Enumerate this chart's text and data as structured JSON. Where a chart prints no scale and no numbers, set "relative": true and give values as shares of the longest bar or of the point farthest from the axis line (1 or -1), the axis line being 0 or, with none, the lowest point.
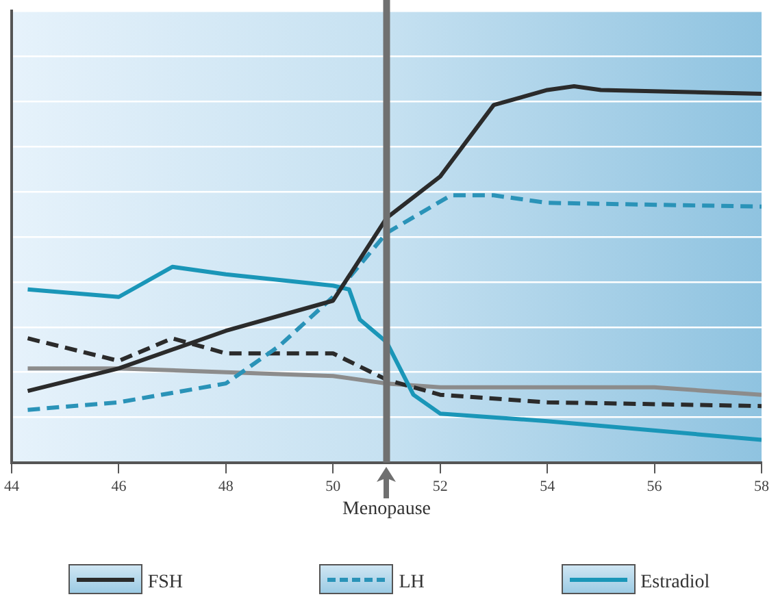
{
  "chart_data": {
    "type": "line",
    "relative": true,
    "grid": "y",
    "legend": "bottom",
    "tick_labels": "x",
    "xlim": [
      44,
      58
    ],
    "xticks": [
      44,
      46,
      48,
      50,
      52,
      54,
      56,
      58
    ],
    "ref_lines": [
      {
        "axis": "x",
        "value": 51,
        "label": "Menopause",
        "color": "#707070"
      }
    ],
    "series": [
      {
        "name": "FSH",
        "color": "#2b2b2b",
        "line_style": "solid",
        "x": [
          44.3,
          46,
          48,
          50,
          51,
          52,
          53,
          54,
          54.5,
          55,
          58
        ],
        "values": [
          0.19,
          0.25,
          0.35,
          0.43,
          0.65,
          0.76,
          0.95,
          0.99,
          1,
          0.99,
          0.98
        ]
      },
      {
        "name": "LH",
        "color": "#2a93b8",
        "line_style": "dashed",
        "x": [
          44.3,
          46,
          48,
          49,
          50,
          51,
          52.2,
          53,
          54,
          58
        ],
        "values": [
          0.14,
          0.16,
          0.21,
          0.31,
          0.44,
          0.61,
          0.71,
          0.71,
          0.69,
          0.68
        ]
      },
      {
        "name": "Estradiol",
        "color": "#1a96b8",
        "line_style": "solid",
        "x": [
          44.3,
          46,
          47,
          48,
          50,
          50.3,
          50.5,
          51,
          51.5,
          52,
          54,
          58
        ],
        "values": [
          0.46,
          0.44,
          0.52,
          0.5,
          0.47,
          0.46,
          0.38,
          0.32,
          0.18,
          0.13,
          0.11,
          0.06
        ]
      },
      {
        "color": "#2b2b2b",
        "line_style": "dashed",
        "x": [
          44.3,
          46,
          47,
          48,
          50,
          51,
          52,
          54,
          58
        ],
        "values": [
          0.33,
          0.27,
          0.33,
          0.29,
          0.29,
          0.22,
          0.18,
          0.16,
          0.15
        ]
      },
      {
        "color": "#8c8c8c",
        "line_style": "solid",
        "x": [
          44.3,
          46,
          48,
          50,
          51,
          52,
          56,
          58
        ],
        "values": [
          0.25,
          0.25,
          0.24,
          0.23,
          0.21,
          0.2,
          0.2,
          0.18
        ]
      }
    ]
  }
}
